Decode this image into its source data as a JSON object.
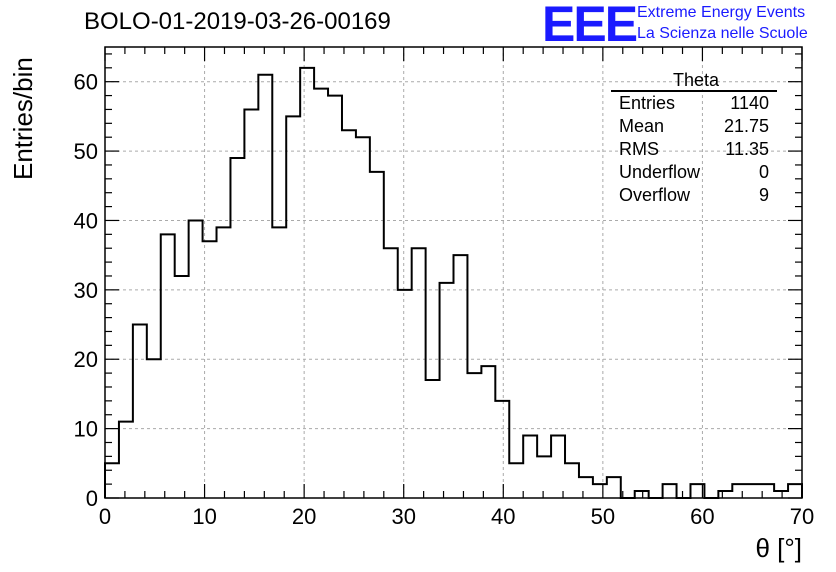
{
  "title": "BOLO-01-2019-03-26-00169",
  "logo": {
    "letters": "EEE",
    "line1": "Extreme Energy Events",
    "line2": "La Scienza nelle Scuole",
    "color": "#1a1aff"
  },
  "stats": {
    "title": "Theta",
    "rows": [
      {
        "label": "Entries",
        "value": "1140"
      },
      {
        "label": "Mean",
        "value": "21.75"
      },
      {
        "label": "RMS",
        "value": "11.35"
      },
      {
        "label": "Underflow",
        "value": "0"
      },
      {
        "label": "Overflow",
        "value": "9"
      }
    ]
  },
  "chart_data": {
    "type": "bar",
    "title": "BOLO-01-2019-03-26-00169",
    "xlabel": "θ [°]",
    "ylabel": "Entries/bin",
    "xlim": [
      0,
      70
    ],
    "ylim": [
      0,
      65
    ],
    "bin_width": 1.4,
    "x_ticks": [
      0,
      10,
      20,
      30,
      40,
      50,
      60,
      70
    ],
    "y_ticks": [
      0,
      10,
      20,
      30,
      40,
      50,
      60
    ],
    "grid": true,
    "values": [
      5,
      11,
      25,
      20,
      38,
      32,
      40,
      37,
      39,
      49,
      56,
      61,
      39,
      55,
      62,
      59,
      58,
      53,
      52,
      47,
      36,
      30,
      36,
      17,
      31,
      35,
      18,
      19,
      14,
      5,
      9,
      6,
      9,
      5,
      3,
      2,
      3,
      0,
      1,
      0,
      2,
      0,
      2,
      0,
      1,
      2,
      2,
      2,
      1,
      2
    ]
  }
}
